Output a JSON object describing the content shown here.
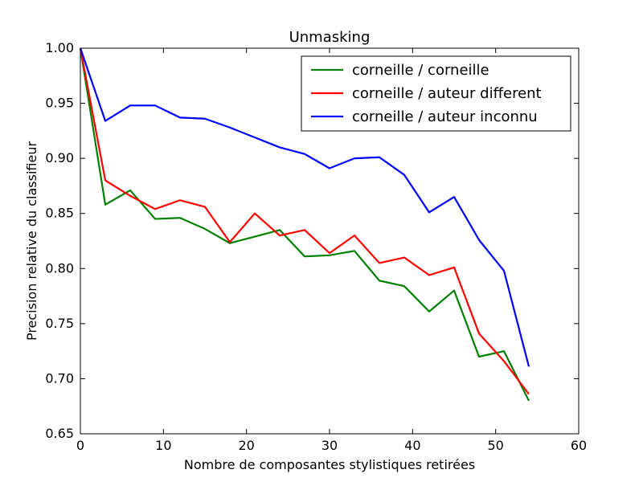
{
  "chart_data": {
    "type": "line",
    "title": "Unmasking",
    "xlabel": "Nombre de composantes stylistiques retirées",
    "ylabel": "Precision relative du classifieur",
    "xlim": [
      0,
      60
    ],
    "ylim": [
      0.65,
      1.0
    ],
    "xticks": [
      0,
      10,
      20,
      30,
      40,
      50,
      60
    ],
    "yticks": [
      0.65,
      0.7,
      0.75,
      0.8,
      0.85,
      0.9,
      0.95,
      1.0
    ],
    "xtick_labels": [
      "0",
      "10",
      "20",
      "30",
      "40",
      "50",
      "60"
    ],
    "ytick_labels": [
      "0.65",
      "0.70",
      "0.75",
      "0.80",
      "0.85",
      "0.90",
      "0.95",
      "1.00"
    ],
    "grid": false,
    "legend_position": "top-right",
    "x": [
      0,
      3,
      6,
      9,
      12,
      15,
      18,
      21,
      24,
      27,
      30,
      33,
      36,
      39,
      42,
      45,
      48,
      51,
      54
    ],
    "series": [
      {
        "name": "corneille / corneille",
        "color": "#008000",
        "values": [
          1.0,
          0.858,
          0.871,
          0.845,
          0.846,
          0.836,
          0.823,
          0.829,
          0.835,
          0.811,
          0.812,
          0.816,
          0.789,
          0.784,
          0.761,
          0.78,
          0.72,
          0.725,
          0.68
        ]
      },
      {
        "name": "corneille / auteur different",
        "color": "#ff0000",
        "values": [
          1.0,
          0.88,
          0.866,
          0.854,
          0.862,
          0.856,
          0.824,
          0.85,
          0.83,
          0.835,
          0.814,
          0.83,
          0.805,
          0.81,
          0.794,
          0.801,
          0.741,
          0.716,
          0.686
        ]
      },
      {
        "name": "corneille / auteur inconnu",
        "color": "#0000ff",
        "values": [
          1.0,
          0.934,
          0.948,
          0.948,
          0.937,
          0.936,
          0.928,
          0.919,
          0.91,
          0.904,
          0.891,
          0.9,
          0.901,
          0.885,
          0.851,
          0.865,
          0.826,
          0.798,
          0.711
        ]
      }
    ]
  }
}
